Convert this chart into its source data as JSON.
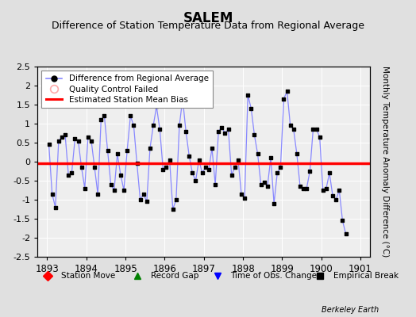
{
  "title": "SALEM",
  "subtitle": "Difference of Station Temperature Data from Regional Average",
  "ylabel": "Monthly Temperature Anomaly Difference (°C)",
  "bias_value": -0.05,
  "ylim": [
    -2.5,
    2.5
  ],
  "xlim_start": 1892.75,
  "xlim_end": 1901.25,
  "xticks": [
    1893,
    1894,
    1895,
    1896,
    1897,
    1898,
    1899,
    1900,
    1901
  ],
  "yticks": [
    -2.5,
    -2,
    -1.5,
    -1,
    -0.5,
    0,
    0.5,
    1,
    1.5,
    2,
    2.5
  ],
  "ytick_labels": [
    "-2.5",
    "-2",
    "-1.5",
    "-1",
    "-0.5",
    "0",
    "0.5",
    "1",
    "1.5",
    "2",
    "2.5"
  ],
  "line_color": "#0000cc",
  "line_color_light": "#8888ff",
  "marker_color": "#000000",
  "bias_color": "#ff0000",
  "fig_bg_color": "#e0e0e0",
  "plot_bg_color": "#eeeeee",
  "title_fontsize": 12,
  "subtitle_fontsize": 9,
  "data": [
    0.45,
    -0.85,
    -1.2,
    0.55,
    0.65,
    0.7,
    -0.35,
    -0.3,
    0.6,
    0.55,
    -0.15,
    -0.7,
    0.65,
    0.55,
    -0.15,
    -0.85,
    1.1,
    1.2,
    0.3,
    -0.6,
    -0.75,
    0.2,
    -0.35,
    -0.75,
    0.3,
    1.2,
    0.95,
    -0.05,
    -1.0,
    -0.85,
    -1.05,
    0.35,
    0.95,
    1.45,
    0.85,
    -0.2,
    -0.15,
    0.05,
    -1.25,
    -1.0,
    0.95,
    1.65,
    0.8,
    0.15,
    -0.3,
    -0.5,
    0.05,
    -0.3,
    -0.15,
    -0.2,
    0.35,
    -0.6,
    0.8,
    0.9,
    0.75,
    0.85,
    -0.35,
    -0.15,
    0.05,
    -0.85,
    -0.95,
    1.75,
    1.4,
    0.7,
    0.2,
    -0.6,
    -0.55,
    -0.65,
    0.1,
    -1.1,
    -0.3,
    -0.15,
    1.65,
    1.85,
    0.95,
    0.85,
    0.2,
    -0.65,
    -0.7,
    -0.7,
    -0.25,
    0.85,
    0.85,
    0.65,
    -0.75,
    -0.7,
    -0.3,
    -0.9,
    -1.0,
    -0.75,
    -1.55,
    -1.9
  ]
}
